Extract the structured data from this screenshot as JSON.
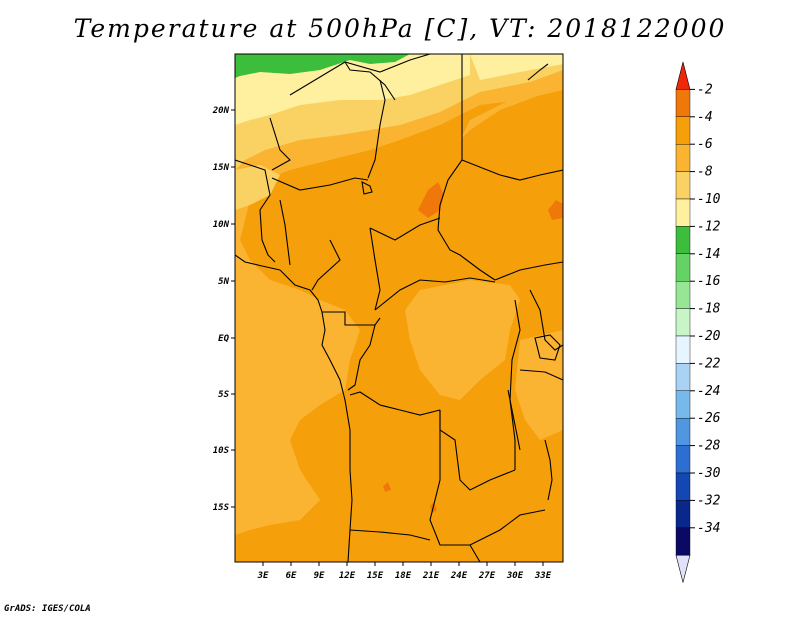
{
  "title": "Temperature at 500hPa [C], VT: 2018122000",
  "footer": "GrADS: IGES/COLA",
  "map": {
    "region": "Central Africa",
    "lat_range": [
      -20,
      25
    ],
    "lon_range": [
      0,
      35
    ],
    "x_ticks": [
      "3E",
      "6E",
      "9E",
      "12E",
      "15E",
      "18E",
      "21E",
      "24E",
      "27E",
      "30E",
      "33E"
    ],
    "y_ticks": [
      "20N",
      "15N",
      "10N",
      "5N",
      "EQ",
      "5S",
      "10S",
      "15S"
    ]
  },
  "colorbar": {
    "levels": [
      "-2",
      "-4",
      "-6",
      "-8",
      "-10",
      "-12",
      "-14",
      "-16",
      "-18",
      "-20",
      "-22",
      "-24",
      "-26",
      "-28",
      "-30",
      "-32",
      "-34"
    ],
    "colors": [
      "#f0280a",
      "#f0780a",
      "#f5a00a",
      "#fab432",
      "#fad264",
      "#fff0a0",
      "#3cbe3c",
      "#64d264",
      "#96e696",
      "#c8f5c8",
      "#e6f5ff",
      "#aad2f5",
      "#78b9eb",
      "#5096e1",
      "#2d6ed2",
      "#1446b4",
      "#0a288c",
      "#0a0a64",
      "#e1e1fa"
    ]
  }
}
